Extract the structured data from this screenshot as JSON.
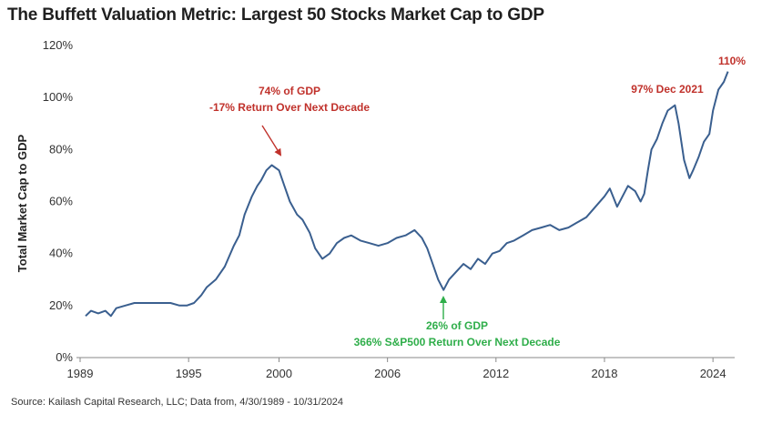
{
  "title": "The Buffett Valuation Metric: Largest 50 Stocks Market Cap to GDP",
  "source": "Source: Kailash Capital Research, LLC; Data from, 4/30/1989 - 10/31/2024",
  "colors": {
    "line": "#3a5f8f",
    "red": "#c0312b",
    "green": "#2fae4a",
    "axis": "#888888"
  },
  "chart_data": {
    "type": "line",
    "title": "The Buffett Valuation Metric: Largest 50 Stocks Market Cap to GDP",
    "xlabel": "",
    "ylabel": "Total Market Cap to GDP",
    "xlim": [
      1989,
      2025.1
    ],
    "ylim": [
      0,
      120
    ],
    "grid": false,
    "x_ticks": [
      1989,
      1995,
      2000,
      2006,
      2012,
      2018,
      2024
    ],
    "y_ticks": [
      {
        "value": 0,
        "label": "0%"
      },
      {
        "value": 20,
        "label": "20%"
      },
      {
        "value": 40,
        "label": "40%"
      },
      {
        "value": 60,
        "label": "60%"
      },
      {
        "value": 80,
        "label": "80%"
      },
      {
        "value": 100,
        "label": "100%"
      },
      {
        "value": 120,
        "label": "120%"
      }
    ],
    "series": [
      {
        "x": [
          1989.3,
          1989.6,
          1990.0,
          1990.4,
          1990.7,
          1991.0,
          1991.5,
          1992.0,
          1992.5,
          1993.0,
          1993.5,
          1994.0,
          1994.5,
          1994.9,
          1995.3,
          1995.7,
          1996.0,
          1996.5,
          1997.0,
          1997.5,
          1997.8,
          1998.1,
          1998.5,
          1998.8,
          1999.0,
          1999.3,
          1999.6,
          2000.0,
          2000.3,
          2000.6,
          2001.0,
          2001.3,
          2001.7,
          2002.0,
          2002.4,
          2002.8,
          2003.2,
          2003.6,
          2004.0,
          2004.5,
          2005.0,
          2005.5,
          2006.0,
          2006.5,
          2007.0,
          2007.5,
          2007.9,
          2008.2,
          2008.5,
          2008.8,
          2009.1,
          2009.4,
          2009.8,
          2010.2,
          2010.6,
          2011.0,
          2011.4,
          2011.8,
          2012.2,
          2012.6,
          2013.0,
          2013.5,
          2014.0,
          2014.5,
          2015.0,
          2015.5,
          2016.0,
          2016.5,
          2017.0,
          2017.5,
          2018.0,
          2018.3,
          2018.7,
          2019.0,
          2019.3,
          2019.7,
          2020.0,
          2020.2,
          2020.4,
          2020.6,
          2020.9,
          2021.2,
          2021.5,
          2021.9,
          2022.1,
          2022.4,
          2022.7,
          2022.9,
          2023.2,
          2023.5,
          2023.8,
          2024.0,
          2024.3,
          2024.6,
          2024.83
        ],
        "values": [
          16,
          18,
          17,
          18,
          16,
          19,
          20,
          21,
          21,
          21,
          21,
          21,
          20,
          20,
          21,
          24,
          27,
          30,
          35,
          43,
          47,
          55,
          62,
          66,
          68,
          72,
          74,
          72,
          66,
          60,
          55,
          53,
          48,
          42,
          38,
          40,
          44,
          46,
          47,
          45,
          44,
          43,
          44,
          46,
          47,
          49,
          46,
          42,
          36,
          30,
          26,
          30,
          33,
          36,
          34,
          38,
          36,
          40,
          41,
          44,
          45,
          47,
          49,
          50,
          51,
          49,
          50,
          52,
          54,
          58,
          62,
          65,
          58,
          62,
          66,
          64,
          60,
          63,
          72,
          80,
          84,
          90,
          95,
          97,
          90,
          76,
          69,
          72,
          77,
          83,
          86,
          95,
          103,
          106,
          110
        ]
      }
    ],
    "annotations": [
      {
        "lines": [
          "74% of GDP",
          "-17% Return Over Next Decade"
        ],
        "x": 1999.6,
        "y": 74,
        "color": "red"
      },
      {
        "lines": [
          "26% of GDP",
          "366% S&P500 Return Over Next Decade"
        ],
        "x": 2009.1,
        "y": 26,
        "color": "green"
      },
      {
        "lines": [
          "97% Dec 2021"
        ],
        "x": 2021.9,
        "y": 97,
        "color": "red"
      },
      {
        "lines": [
          "110%"
        ],
        "x": 2024.83,
        "y": 110,
        "color": "red"
      }
    ]
  }
}
